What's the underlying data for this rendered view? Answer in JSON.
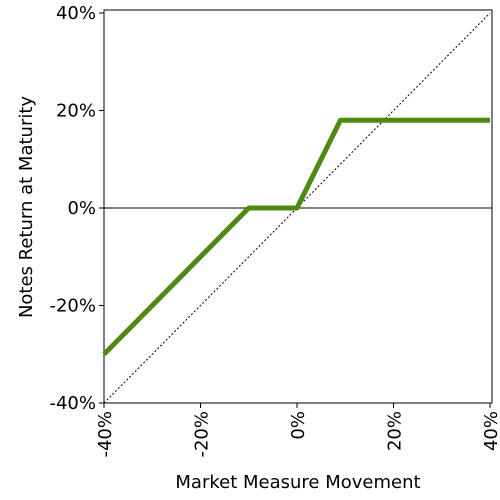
{
  "chart_data": {
    "type": "line",
    "x_label": "Market Measure Movement",
    "y_label": "Notes Return at Maturity",
    "xlim": [
      -40,
      40
    ],
    "ylim": [
      -40,
      40
    ],
    "xticks": [
      {
        "value": -40,
        "label": "-40%"
      },
      {
        "value": -20,
        "label": "-20%"
      },
      {
        "value": 0,
        "label": "0%"
      },
      {
        "value": 20,
        "label": "20%"
      },
      {
        "value": 40,
        "label": "40%"
      }
    ],
    "yticks": [
      {
        "value": -40,
        "label": "-40%"
      },
      {
        "value": -20,
        "label": "-20%"
      },
      {
        "value": 0,
        "label": "0%"
      },
      {
        "value": 20,
        "label": "20%"
      },
      {
        "value": 40,
        "label": "40%"
      }
    ],
    "series": [
      {
        "color": "#4f8a10",
        "x": [
          -40,
          -10,
          0,
          9,
          40
        ],
        "values": [
          -30,
          0,
          0,
          18,
          18
        ]
      },
      {
        "color": "#000000",
        "dashed": true,
        "x": [
          -40,
          40
        ],
        "values": [
          -40,
          40
        ]
      }
    ]
  }
}
